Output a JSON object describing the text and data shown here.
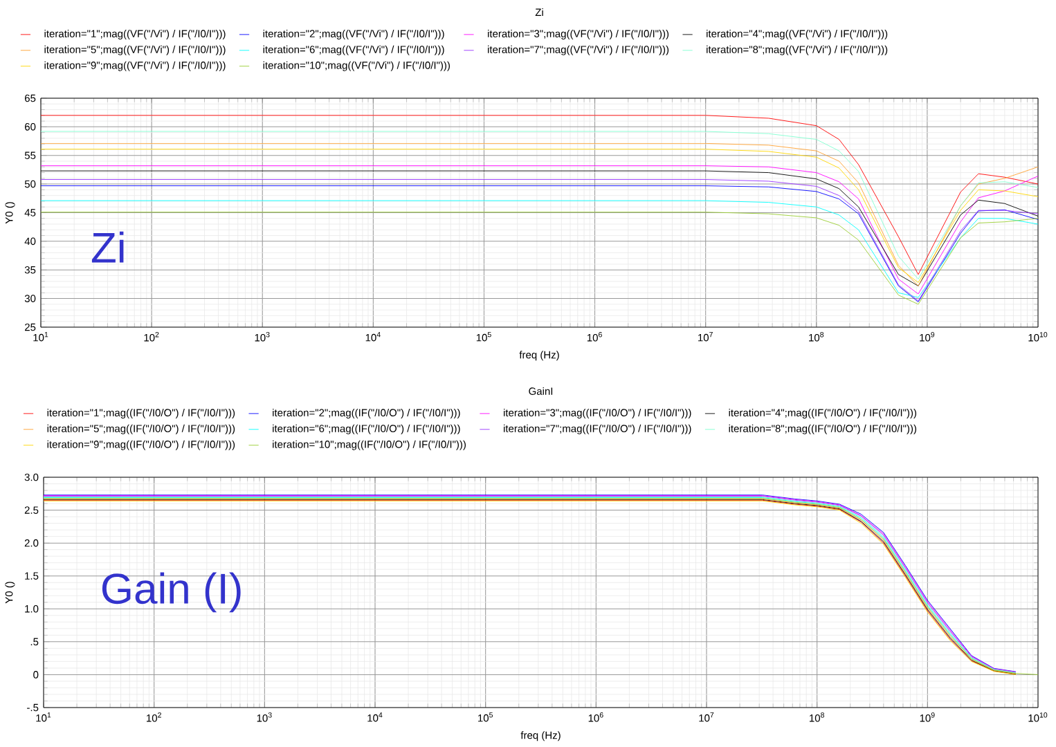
{
  "chart_data": [
    {
      "type": "line",
      "title": "Zi",
      "xlabel": "freq (Hz)",
      "ylabel": "Y0 ()",
      "log": "x",
      "grid": true,
      "legend": "top",
      "line_style": "solid",
      "annotations": [
        "Zi"
      ],
      "xlim": [
        10,
        10000000000
      ],
      "ylim": [
        25,
        65
      ],
      "yticks": [
        25,
        30,
        35,
        40,
        45,
        50,
        55,
        60,
        65
      ],
      "xticks": [
        {
          "value": 10,
          "label": "10$^{1}$"
        },
        {
          "value": 100,
          "label": "10$^{2}$"
        },
        {
          "value": 1000,
          "label": "10$^{3}$"
        },
        {
          "value": 10000,
          "label": "10$^{4}$"
        },
        {
          "value": 100000,
          "label": "10$^{5}$"
        },
        {
          "value": 1000000,
          "label": "10$^{6}$"
        },
        {
          "value": 10000000,
          "label": "10$^{7}$"
        },
        {
          "value": 100000000,
          "label": "10$^{8}$"
        },
        {
          "value": 1000000000,
          "label": "10$^{9}$"
        },
        {
          "value": 10000000000,
          "label": "10$^{10}$"
        }
      ],
      "x": [
        10,
        10000000,
        37000000,
        100000000,
        160000000,
        240000000,
        550000000,
        830000000,
        2000000000,
        2900000000,
        5000000000,
        10000000000
      ],
      "series": [
        {
          "name": "iteration=\"1\";mag((VF(\"/Vi\") / IF(\"/I0/I\")))",
          "color": "#ff0000",
          "values": [
            62,
            62,
            61.5,
            60.2,
            57.8,
            53.4,
            40.8,
            34.2,
            48.6,
            51.8,
            51.2,
            50
          ]
        },
        {
          "name": "iteration=\"2\";mag((VF(\"/Vi\") / IF(\"/I0/I\")))",
          "color": "#0000ff",
          "values": [
            49.7,
            49.7,
            49.5,
            48.7,
            47.4,
            44.8,
            32.2,
            29.4,
            41.4,
            45.3,
            45.5,
            43.8
          ]
        },
        {
          "name": "iteration=\"3\";mag((VF(\"/Vi\") / IF(\"/I0/I\")))",
          "color": "#ff00ff",
          "values": [
            53.2,
            53.2,
            53,
            52,
            50.4,
            47.4,
            33.4,
            30.8,
            43.4,
            47.6,
            48.8,
            51.4
          ]
        },
        {
          "name": "iteration=\"4\";mag((VF(\"/Vi\") / IF(\"/I0/I\")))",
          "color": "#000000",
          "values": [
            52.3,
            52.3,
            52,
            50.9,
            49.2,
            46,
            34.2,
            32.2,
            44.6,
            47.2,
            46.6,
            44.4
          ]
        },
        {
          "name": "iteration=\"5\";mag((VF(\"/Vi\") / IF(\"/I0/I\")))",
          "color": "#ffa030",
          "values": [
            57.1,
            57.1,
            56.8,
            55.8,
            54,
            50.2,
            35.8,
            32.2,
            46.2,
            50,
            51,
            53
          ]
        },
        {
          "name": "iteration=\"6\";mag((VF(\"/Vi\") / IF(\"/I0/I\")))",
          "color": "#00ffff",
          "values": [
            47.1,
            47.1,
            46.8,
            46,
            44.6,
            42,
            31,
            30.2,
            40.6,
            44,
            44,
            43
          ]
        },
        {
          "name": "iteration=\"7\";mag((VF(\"/Vi\") / IF(\"/I0/I\")))",
          "color": "#9933ff",
          "values": [
            50.8,
            50.8,
            50.5,
            49.6,
            48,
            45.2,
            32.4,
            29.6,
            41.8,
            45.4,
            45.4,
            44.8
          ]
        },
        {
          "name": "iteration=\"8\";mag((VF(\"/Vi\") / IF(\"/I0/I\")))",
          "color": "#80ffd0",
          "values": [
            59.2,
            59.2,
            58.8,
            57.8,
            55.8,
            52.2,
            37.4,
            33.4,
            46.2,
            50.2,
            50.4,
            49.4
          ]
        },
        {
          "name": "iteration=\"9\";mag((VF(\"/Vi\") / IF(\"/I0/I\")))",
          "color": "#ffd700",
          "values": [
            56.1,
            56.1,
            55.7,
            54.7,
            52.8,
            49,
            35.4,
            32.8,
            45.4,
            49,
            48.8,
            47.8
          ]
        },
        {
          "name": "iteration=\"10\";mag((VF(\"/Vi\") / IF(\"/I0/I\")))",
          "color": "#9acd32",
          "values": [
            45.1,
            45.1,
            44.8,
            44.1,
            42.8,
            40.2,
            30.6,
            29,
            40.6,
            43.2,
            43.4,
            44
          ]
        }
      ]
    },
    {
      "type": "line",
      "title": "GainI",
      "xlabel": "freq (Hz)",
      "ylabel": "Y0 ()",
      "log": "x",
      "grid": true,
      "legend": "top",
      "line_style": "solid",
      "annotations": [
        "Gain (I)"
      ],
      "xlim": [
        10,
        10000000000
      ],
      "ylim": [
        -0.5,
        3.0
      ],
      "yticks": [
        {
          "value": -0.5,
          "label": "-.5"
        },
        0,
        {
          "value": 0.5,
          "label": ".5"
        },
        {
          "value": 1.0,
          "label": "1.0"
        },
        {
          "value": 1.5,
          "label": "1.5"
        },
        {
          "value": 2.0,
          "label": "2.0"
        },
        {
          "value": 2.5,
          "label": "2.5"
        },
        {
          "value": 3.0,
          "label": "3.0"
        }
      ],
      "xticks": [
        {
          "value": 10,
          "label": "10$^{1}$"
        },
        {
          "value": 100,
          "label": "10$^{2}$"
        },
        {
          "value": 1000,
          "label": "10$^{3}$"
        },
        {
          "value": 10000,
          "label": "10$^{4}$"
        },
        {
          "value": 100000,
          "label": "10$^{5}$"
        },
        {
          "value": 1000000,
          "label": "10$^{6}$"
        },
        {
          "value": 10000000,
          "label": "10$^{7}$"
        },
        {
          "value": 100000000,
          "label": "10$^{8}$"
        },
        {
          "value": 1000000000,
          "label": "10$^{9}$"
        },
        {
          "value": 10000000000,
          "label": "10$^{10}$"
        }
      ],
      "x": [
        10,
        32000000,
        63000000,
        100000000,
        160000000,
        250000000,
        400000000,
        630000000,
        1000000000,
        1600000000,
        2500000000,
        4000000000,
        6300000000,
        10000000000
      ],
      "series": [
        {
          "name": "iteration=\"1\";mag((IF(\"/I0/O\") / IF(\"/I0/I\")))",
          "color": "#ff0000",
          "values": [
            2.65,
            2.65,
            2.59,
            2.56,
            2.51,
            2.32,
            2.0,
            1.5,
            0.97,
            0.54,
            0.21,
            0.055,
            0.005,
            null
          ]
        },
        {
          "name": "iteration=\"2\";mag((IF(\"/I0/O\") / IF(\"/I0/I\")))",
          "color": "#0000ff",
          "values": [
            2.73,
            2.73,
            2.67,
            2.64,
            2.59,
            2.44,
            2.16,
            1.66,
            1.13,
            0.7,
            0.29,
            0.095,
            0.045,
            null
          ]
        },
        {
          "name": "iteration=\"3\";mag((IF(\"/I0/O\") / IF(\"/I0/I\")))",
          "color": "#ff00ff",
          "values": [
            2.72,
            2.72,
            2.66,
            2.63,
            2.58,
            2.42,
            2.14,
            1.64,
            1.11,
            0.68,
            0.28,
            0.09,
            0.04,
            null
          ]
        },
        {
          "name": "iteration=\"4\";mag((IF(\"/I0/O\") / IF(\"/I0/I\")))",
          "color": "#000000",
          "values": [
            2.66,
            2.66,
            2.6,
            2.57,
            2.52,
            2.33,
            2.02,
            1.52,
            0.99,
            0.56,
            0.22,
            0.06,
            0.01,
            null
          ]
        },
        {
          "name": "iteration=\"5\";mag((IF(\"/I0/O\") / IF(\"/I0/I\")))",
          "color": "#ffa030",
          "values": [
            2.67,
            2.67,
            2.61,
            2.58,
            2.53,
            2.35,
            2.04,
            1.54,
            1.01,
            0.58,
            0.23,
            0.065,
            0.015,
            null
          ]
        },
        {
          "name": "iteration=\"6\";mag((IF(\"/I0/O\") / IF(\"/I0/I\")))",
          "color": "#00ffff",
          "values": [
            2.69,
            2.69,
            2.63,
            2.6,
            2.55,
            2.38,
            2.08,
            1.58,
            1.05,
            0.62,
            0.25,
            0.075,
            0.025,
            null
          ]
        },
        {
          "name": "iteration=\"7\";mag((IF(\"/I0/O\") / IF(\"/I0/I\")))",
          "color": "#9933ff",
          "values": [
            2.71,
            2.71,
            2.65,
            2.62,
            2.57,
            2.41,
            2.12,
            1.62,
            1.09,
            0.66,
            0.27,
            0.085,
            0.035,
            null
          ]
        },
        {
          "name": "iteration=\"8\";mag((IF(\"/I0/O\") / IF(\"/I0/I\")))",
          "color": "#80ffd0",
          "values": [
            2.7,
            2.7,
            2.64,
            2.61,
            2.56,
            2.39,
            2.1,
            1.6,
            1.07,
            0.64,
            0.26,
            0.08,
            0.03,
            null
          ]
        },
        {
          "name": "iteration=\"9\";mag((IF(\"/I0/O\") / IF(\"/I0/I\")))",
          "color": "#ffd700",
          "values": [
            2.64,
            2.64,
            2.58,
            2.55,
            2.5,
            2.3,
            1.98,
            1.48,
            0.95,
            0.52,
            0.2,
            0.05,
            0,
            null
          ]
        },
        {
          "name": "iteration=\"10\";mag((IF(\"/I0/O\") / IF(\"/I0/I\")))",
          "color": "#9acd32",
          "values": [
            2.68,
            2.68,
            2.62,
            2.59,
            2.54,
            2.36,
            2.06,
            1.56,
            1.03,
            0.6,
            0.24,
            0.07,
            0.02,
            0
          ]
        }
      ]
    }
  ]
}
